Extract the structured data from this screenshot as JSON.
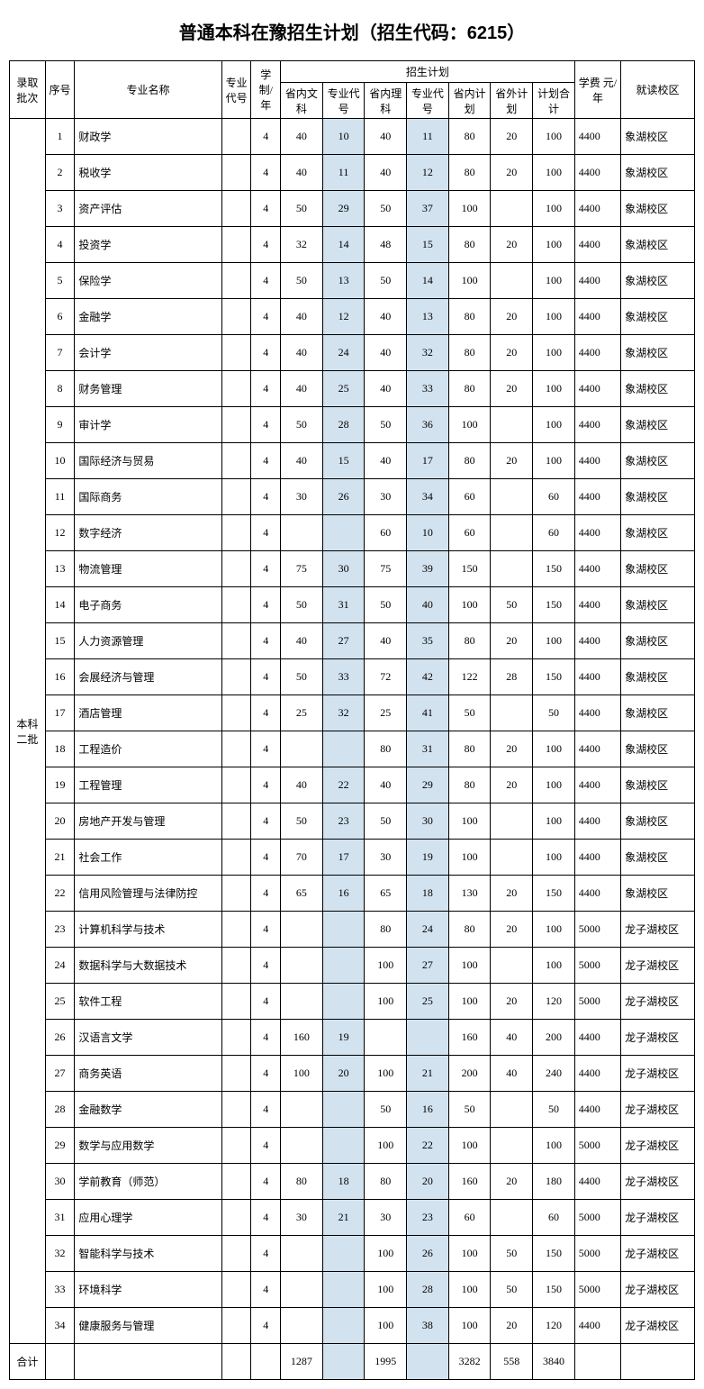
{
  "title": "普通本科在豫招生计划（招生代码：6215）",
  "colors": {
    "highlight_bg": "#d2e2ef",
    "border": "#000000",
    "background": "#ffffff",
    "text": "#000000"
  },
  "header": {
    "batch": "录取批次",
    "seq": "序号",
    "major": "专业名称",
    "major_code": "专业代号",
    "years": "学制/年",
    "plan_group": "招生计划",
    "prov_wen": "省内文科",
    "code_wen": "专业代号",
    "prov_li": "省内理科",
    "code_li": "专业代号",
    "prov_plan": "省内计划",
    "out_plan": "省外计划",
    "total_plan": "计划合计",
    "fee": "学费 元/年",
    "campus": "就读校区"
  },
  "batch_label": "本科二批",
  "rows": [
    {
      "seq": "1",
      "name": "财政学",
      "code": "",
      "years": "4",
      "wen": "40",
      "wcode": "10",
      "li": "40",
      "lcode": "11",
      "in": "80",
      "out": "20",
      "total": "100",
      "fee": "4400",
      "campus": "象湖校区"
    },
    {
      "seq": "2",
      "name": "税收学",
      "code": "",
      "years": "4",
      "wen": "40",
      "wcode": "11",
      "li": "40",
      "lcode": "12",
      "in": "80",
      "out": "20",
      "total": "100",
      "fee": "4400",
      "campus": "象湖校区"
    },
    {
      "seq": "3",
      "name": "资产评估",
      "code": "",
      "years": "4",
      "wen": "50",
      "wcode": "29",
      "li": "50",
      "lcode": "37",
      "in": "100",
      "out": "",
      "total": "100",
      "fee": "4400",
      "campus": "象湖校区"
    },
    {
      "seq": "4",
      "name": "投资学",
      "code": "",
      "years": "4",
      "wen": "32",
      "wcode": "14",
      "li": "48",
      "lcode": "15",
      "in": "80",
      "out": "20",
      "total": "100",
      "fee": "4400",
      "campus": "象湖校区"
    },
    {
      "seq": "5",
      "name": "保险学",
      "code": "",
      "years": "4",
      "wen": "50",
      "wcode": "13",
      "li": "50",
      "lcode": "14",
      "in": "100",
      "out": "",
      "total": "100",
      "fee": "4400",
      "campus": "象湖校区"
    },
    {
      "seq": "6",
      "name": "金融学",
      "code": "",
      "years": "4",
      "wen": "40",
      "wcode": "12",
      "li": "40",
      "lcode": "13",
      "in": "80",
      "out": "20",
      "total": "100",
      "fee": "4400",
      "campus": "象湖校区"
    },
    {
      "seq": "7",
      "name": "会计学",
      "code": "",
      "years": "4",
      "wen": "40",
      "wcode": "24",
      "li": "40",
      "lcode": "32",
      "in": "80",
      "out": "20",
      "total": "100",
      "fee": "4400",
      "campus": "象湖校区"
    },
    {
      "seq": "8",
      "name": "财务管理",
      "code": "",
      "years": "4",
      "wen": "40",
      "wcode": "25",
      "li": "40",
      "lcode": "33",
      "in": "80",
      "out": "20",
      "total": "100",
      "fee": "4400",
      "campus": "象湖校区"
    },
    {
      "seq": "9",
      "name": "审计学",
      "code": "",
      "years": "4",
      "wen": "50",
      "wcode": "28",
      "li": "50",
      "lcode": "36",
      "in": "100",
      "out": "",
      "total": "100",
      "fee": "4400",
      "campus": "象湖校区"
    },
    {
      "seq": "10",
      "name": "国际经济与贸易",
      "code": "",
      "years": "4",
      "wen": "40",
      "wcode": "15",
      "li": "40",
      "lcode": "17",
      "in": "80",
      "out": "20",
      "total": "100",
      "fee": "4400",
      "campus": "象湖校区"
    },
    {
      "seq": "11",
      "name": "国际商务",
      "code": "",
      "years": "4",
      "wen": "30",
      "wcode": "26",
      "li": "30",
      "lcode": "34",
      "in": "60",
      "out": "",
      "total": "60",
      "fee": "4400",
      "campus": "象湖校区"
    },
    {
      "seq": "12",
      "name": "数字经济",
      "code": "",
      "years": "4",
      "wen": "",
      "wcode": "",
      "li": "60",
      "lcode": "10",
      "in": "60",
      "out": "",
      "total": "60",
      "fee": "4400",
      "campus": "象湖校区"
    },
    {
      "seq": "13",
      "name": "物流管理",
      "code": "",
      "years": "4",
      "wen": "75",
      "wcode": "30",
      "li": "75",
      "lcode": "39",
      "in": "150",
      "out": "",
      "total": "150",
      "fee": "4400",
      "campus": "象湖校区"
    },
    {
      "seq": "14",
      "name": "电子商务",
      "code": "",
      "years": "4",
      "wen": "50",
      "wcode": "31",
      "li": "50",
      "lcode": "40",
      "in": "100",
      "out": "50",
      "total": "150",
      "fee": "4400",
      "campus": "象湖校区"
    },
    {
      "seq": "15",
      "name": "人力资源管理",
      "code": "",
      "years": "4",
      "wen": "40",
      "wcode": "27",
      "li": "40",
      "lcode": "35",
      "in": "80",
      "out": "20",
      "total": "100",
      "fee": "4400",
      "campus": "象湖校区"
    },
    {
      "seq": "16",
      "name": "会展经济与管理",
      "code": "",
      "years": "4",
      "wen": "50",
      "wcode": "33",
      "li": "72",
      "lcode": "42",
      "in": "122",
      "out": "28",
      "total": "150",
      "fee": "4400",
      "campus": "象湖校区"
    },
    {
      "seq": "17",
      "name": "酒店管理",
      "code": "",
      "years": "4",
      "wen": "25",
      "wcode": "32",
      "li": "25",
      "lcode": "41",
      "in": "50",
      "out": "",
      "total": "50",
      "fee": "4400",
      "campus": "象湖校区"
    },
    {
      "seq": "18",
      "name": "工程造价",
      "code": "",
      "years": "4",
      "wen": "",
      "wcode": "",
      "li": "80",
      "lcode": "31",
      "in": "80",
      "out": "20",
      "total": "100",
      "fee": "4400",
      "campus": "象湖校区"
    },
    {
      "seq": "19",
      "name": "工程管理",
      "code": "",
      "years": "4",
      "wen": "40",
      "wcode": "22",
      "li": "40",
      "lcode": "29",
      "in": "80",
      "out": "20",
      "total": "100",
      "fee": "4400",
      "campus": "象湖校区"
    },
    {
      "seq": "20",
      "name": "房地产开发与管理",
      "code": "",
      "years": "4",
      "wen": "50",
      "wcode": "23",
      "li": "50",
      "lcode": "30",
      "in": "100",
      "out": "",
      "total": "100",
      "fee": "4400",
      "campus": "象湖校区"
    },
    {
      "seq": "21",
      "name": "社会工作",
      "code": "",
      "years": "4",
      "wen": "70",
      "wcode": "17",
      "li": "30",
      "lcode": "19",
      "in": "100",
      "out": "",
      "total": "100",
      "fee": "4400",
      "campus": "象湖校区"
    },
    {
      "seq": "22",
      "name": "信用风险管理与法律防控",
      "code": "",
      "years": "4",
      "wen": "65",
      "wcode": "16",
      "li": "65",
      "lcode": "18",
      "in": "130",
      "out": "20",
      "total": "150",
      "fee": "4400",
      "campus": "象湖校区"
    },
    {
      "seq": "23",
      "name": "计算机科学与技术",
      "code": "",
      "years": "4",
      "wen": "",
      "wcode": "",
      "li": "80",
      "lcode": "24",
      "in": "80",
      "out": "20",
      "total": "100",
      "fee": "5000",
      "campus": "龙子湖校区"
    },
    {
      "seq": "24",
      "name": "数据科学与大数据技术",
      "code": "",
      "years": "4",
      "wen": "",
      "wcode": "",
      "li": "100",
      "lcode": "27",
      "in": "100",
      "out": "",
      "total": "100",
      "fee": "5000",
      "campus": "龙子湖校区"
    },
    {
      "seq": "25",
      "name": "软件工程",
      "code": "",
      "years": "4",
      "wen": "",
      "wcode": "",
      "li": "100",
      "lcode": "25",
      "in": "100",
      "out": "20",
      "total": "120",
      "fee": "5000",
      "campus": "龙子湖校区"
    },
    {
      "seq": "26",
      "name": "汉语言文学",
      "code": "",
      "years": "4",
      "wen": "160",
      "wcode": "19",
      "li": "",
      "lcode": "",
      "in": "160",
      "out": "40",
      "total": "200",
      "fee": "4400",
      "campus": "龙子湖校区"
    },
    {
      "seq": "27",
      "name": "商务英语",
      "code": "",
      "years": "4",
      "wen": "100",
      "wcode": "20",
      "li": "100",
      "lcode": "21",
      "in": "200",
      "out": "40",
      "total": "240",
      "fee": "4400",
      "campus": "龙子湖校区"
    },
    {
      "seq": "28",
      "name": "金融数学",
      "code": "",
      "years": "4",
      "wen": "",
      "wcode": "",
      "li": "50",
      "lcode": "16",
      "in": "50",
      "out": "",
      "total": "50",
      "fee": "4400",
      "campus": "龙子湖校区"
    },
    {
      "seq": "29",
      "name": "数学与应用数学",
      "code": "",
      "years": "4",
      "wen": "",
      "wcode": "",
      "li": "100",
      "lcode": "22",
      "in": "100",
      "out": "",
      "total": "100",
      "fee": "5000",
      "campus": "龙子湖校区"
    },
    {
      "seq": "30",
      "name": "学前教育（师范）",
      "code": "",
      "years": "4",
      "wen": "80",
      "wcode": "18",
      "li": "80",
      "lcode": "20",
      "in": "160",
      "out": "20",
      "total": "180",
      "fee": "4400",
      "campus": "龙子湖校区"
    },
    {
      "seq": "31",
      "name": "应用心理学",
      "code": "",
      "years": "4",
      "wen": "30",
      "wcode": "21",
      "li": "30",
      "lcode": "23",
      "in": "60",
      "out": "",
      "total": "60",
      "fee": "5000",
      "campus": "龙子湖校区"
    },
    {
      "seq": "32",
      "name": "智能科学与技术",
      "code": "",
      "years": "4",
      "wen": "",
      "wcode": "",
      "li": "100",
      "lcode": "26",
      "in": "100",
      "out": "50",
      "total": "150",
      "fee": "5000",
      "campus": "龙子湖校区"
    },
    {
      "seq": "33",
      "name": "环境科学",
      "code": "",
      "years": "4",
      "wen": "",
      "wcode": "",
      "li": "100",
      "lcode": "28",
      "in": "100",
      "out": "50",
      "total": "150",
      "fee": "5000",
      "campus": "龙子湖校区"
    },
    {
      "seq": "34",
      "name": "健康服务与管理",
      "code": "",
      "years": "4",
      "wen": "",
      "wcode": "",
      "li": "100",
      "lcode": "38",
      "in": "100",
      "out": "20",
      "total": "120",
      "fee": "4400",
      "campus": "龙子湖校区"
    }
  ],
  "total_row": {
    "label": "合计",
    "wen": "1287",
    "li": "1995",
    "in": "3282",
    "out": "558",
    "total": "3840"
  }
}
